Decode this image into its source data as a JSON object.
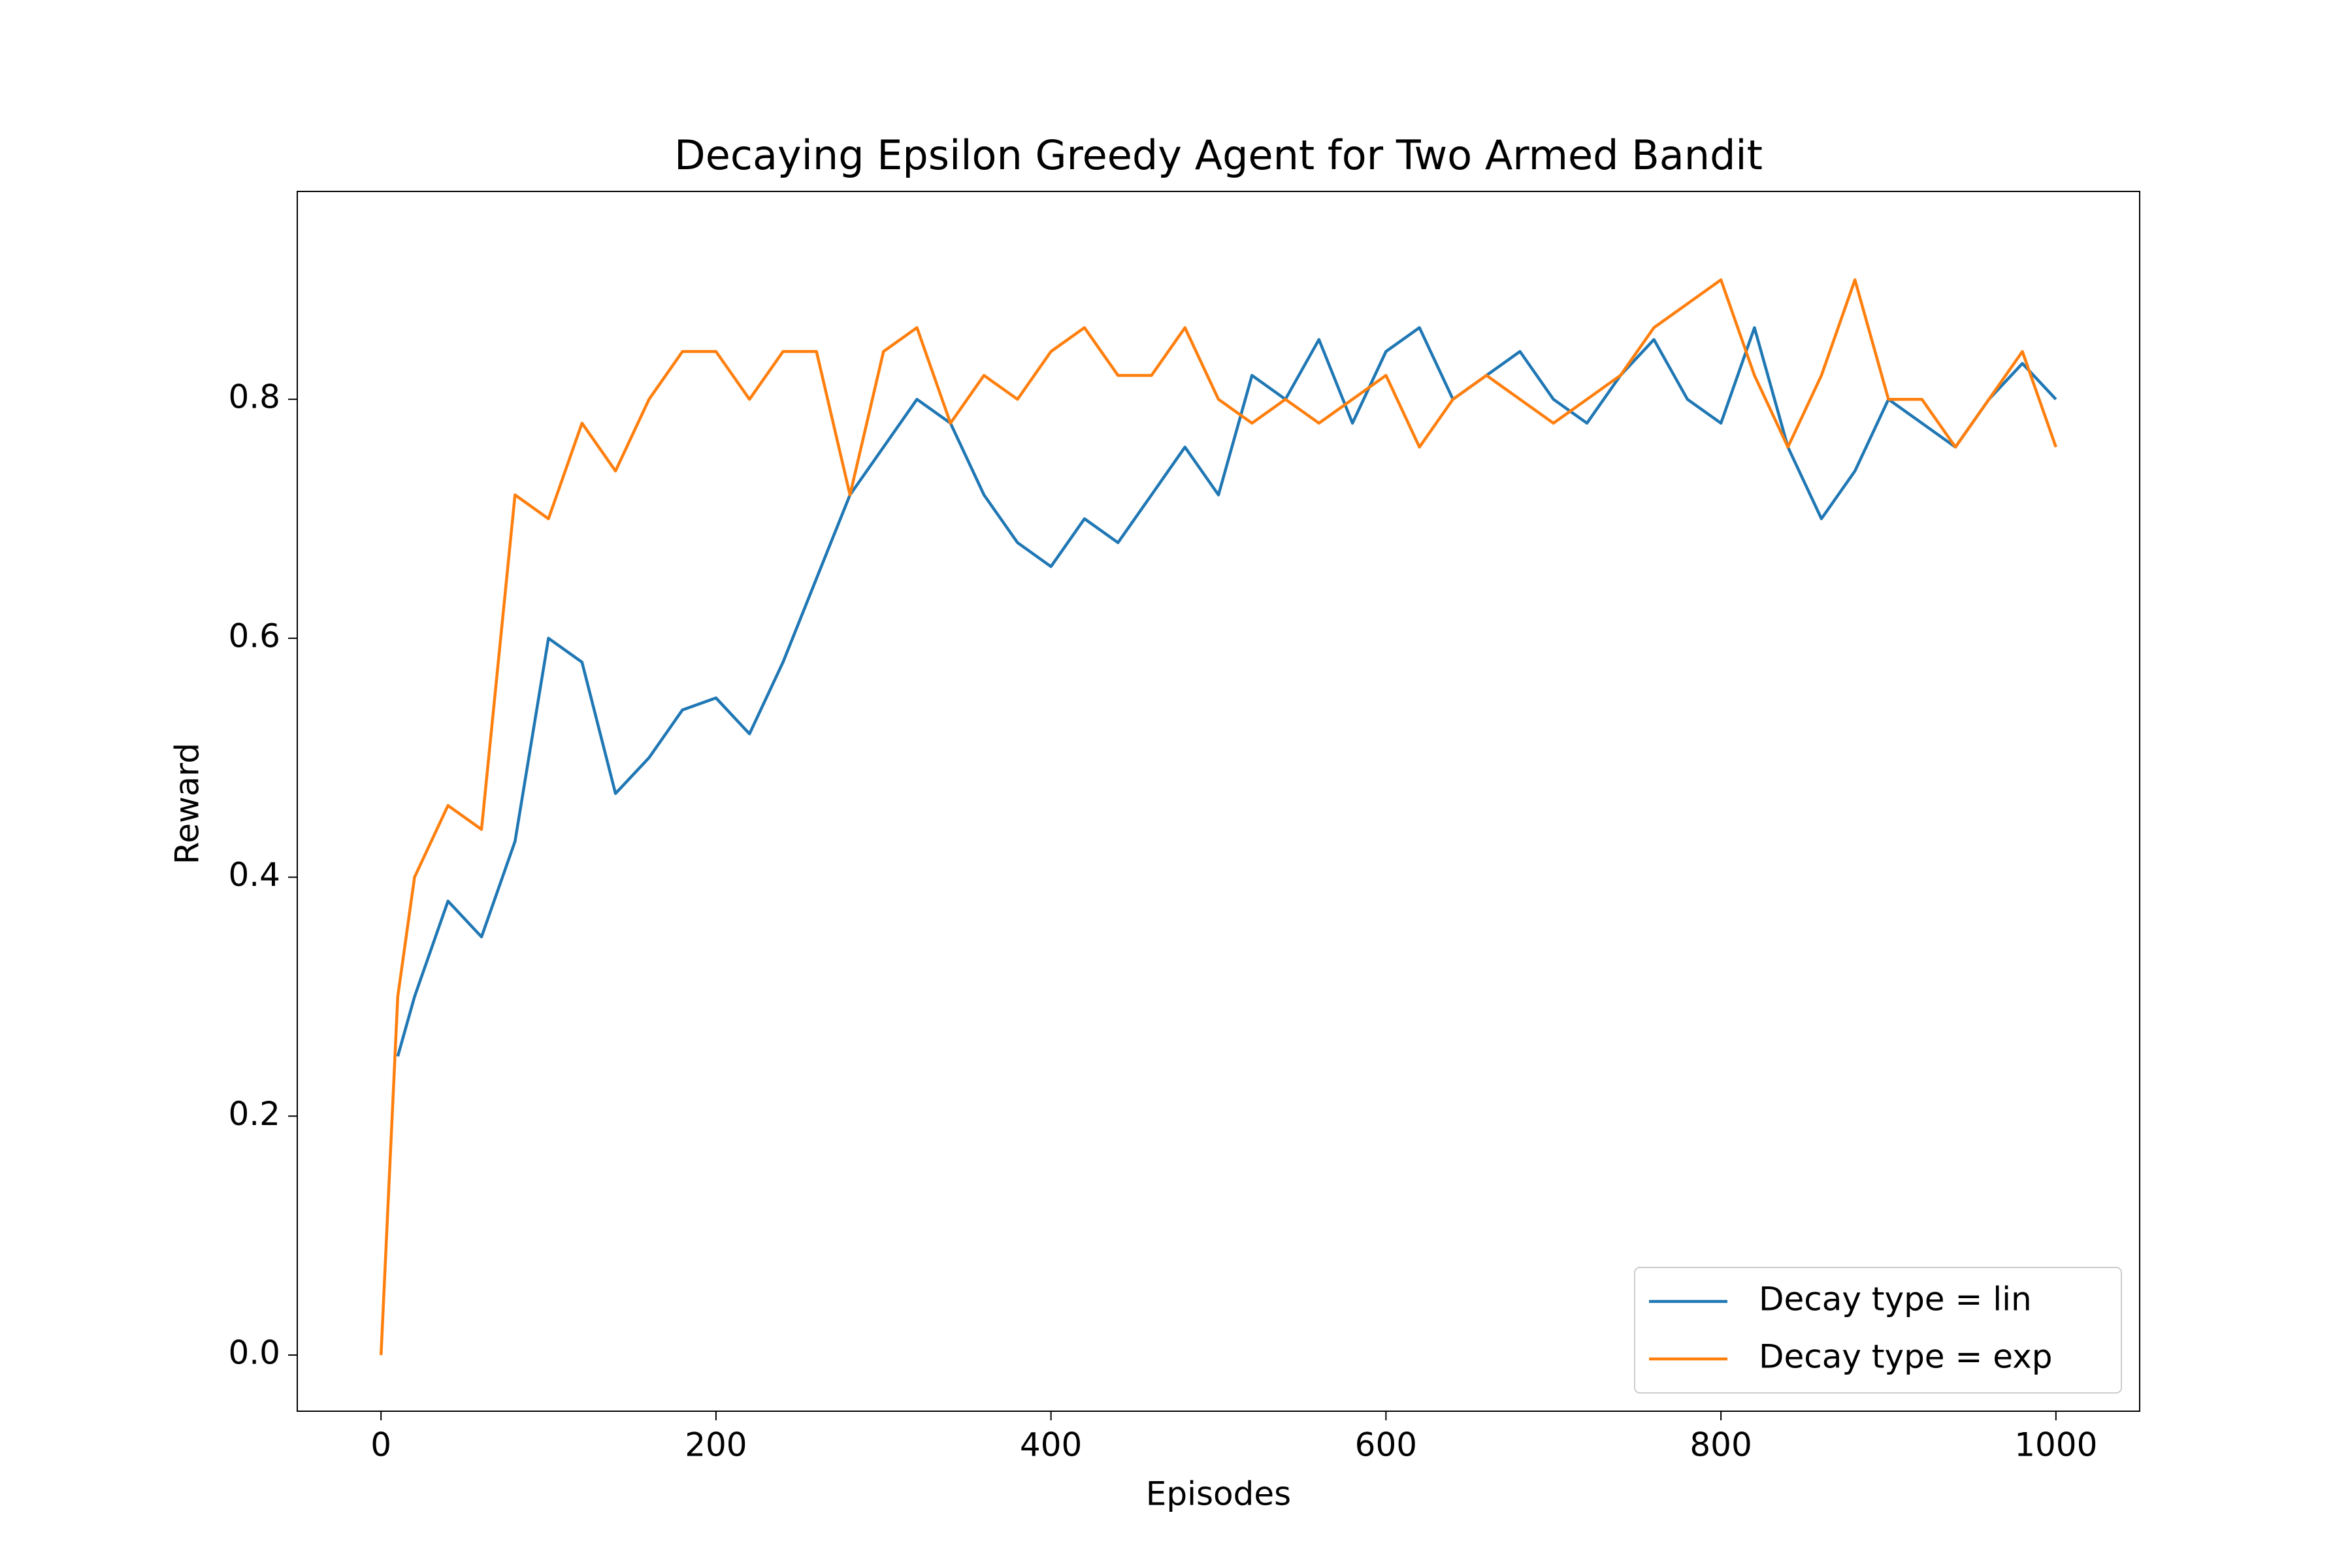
{
  "chart_data": {
    "type": "line",
    "title": "Decaying Epsilon Greedy Agent for Two Armed Bandit",
    "x_label": "Episodes",
    "y_label": "Reward",
    "x": [
      0,
      10,
      20,
      40,
      60,
      80,
      100,
      120,
      140,
      160,
      180,
      200,
      220,
      240,
      260,
      280,
      300,
      320,
      340,
      360,
      380,
      400,
      420,
      440,
      460,
      480,
      500,
      520,
      540,
      560,
      580,
      600,
      620,
      640,
      660,
      680,
      700,
      720,
      740,
      760,
      780,
      800,
      820,
      840,
      860,
      880,
      900,
      920,
      940,
      960,
      980,
      1000
    ],
    "series": [
      {
        "name": "Decay type = lin",
        "color": "#1f77b4",
        "values": [
          null,
          0.25,
          0.3,
          0.38,
          0.35,
          0.43,
          0.6,
          0.58,
          0.47,
          0.5,
          0.54,
          0.55,
          0.52,
          0.58,
          0.65,
          0.72,
          0.76,
          0.8,
          0.78,
          0.72,
          0.68,
          0.66,
          0.7,
          0.68,
          0.72,
          0.76,
          0.72,
          0.82,
          0.8,
          0.85,
          0.78,
          0.84,
          0.86,
          0.8,
          0.82,
          0.84,
          0.8,
          0.78,
          0.82,
          0.85,
          0.8,
          0.78,
          0.86,
          0.76,
          0.7,
          0.74,
          0.8,
          0.78,
          0.76,
          0.8,
          0.83,
          0.8
        ]
      },
      {
        "name": "Decay type = exp",
        "color": "#ff7f0e",
        "values": [
          0.0,
          0.3,
          0.4,
          0.46,
          0.44,
          0.72,
          0.7,
          0.78,
          0.74,
          0.8,
          0.84,
          0.84,
          0.8,
          0.84,
          0.84,
          0.72,
          0.84,
          0.86,
          0.78,
          0.82,
          0.8,
          0.84,
          0.86,
          0.82,
          0.82,
          0.86,
          0.8,
          0.78,
          0.8,
          0.78,
          0.8,
          0.82,
          0.76,
          0.8,
          0.82,
          0.8,
          0.78,
          0.8,
          0.82,
          0.86,
          0.88,
          0.9,
          0.82,
          0.76,
          0.82,
          0.9,
          0.8,
          0.8,
          0.76,
          0.8,
          0.84,
          0.76
        ]
      }
    ],
    "xlim": [
      -50,
      1050
    ],
    "ylim": [
      -0.047,
      0.974
    ],
    "xticks": [
      0,
      200,
      400,
      600,
      800,
      1000
    ],
    "yticks": [
      {
        "value": 0,
        "label": "0.0"
      },
      0.2,
      0.4,
      0.6,
      0.8
    ],
    "legend": "lower right"
  }
}
